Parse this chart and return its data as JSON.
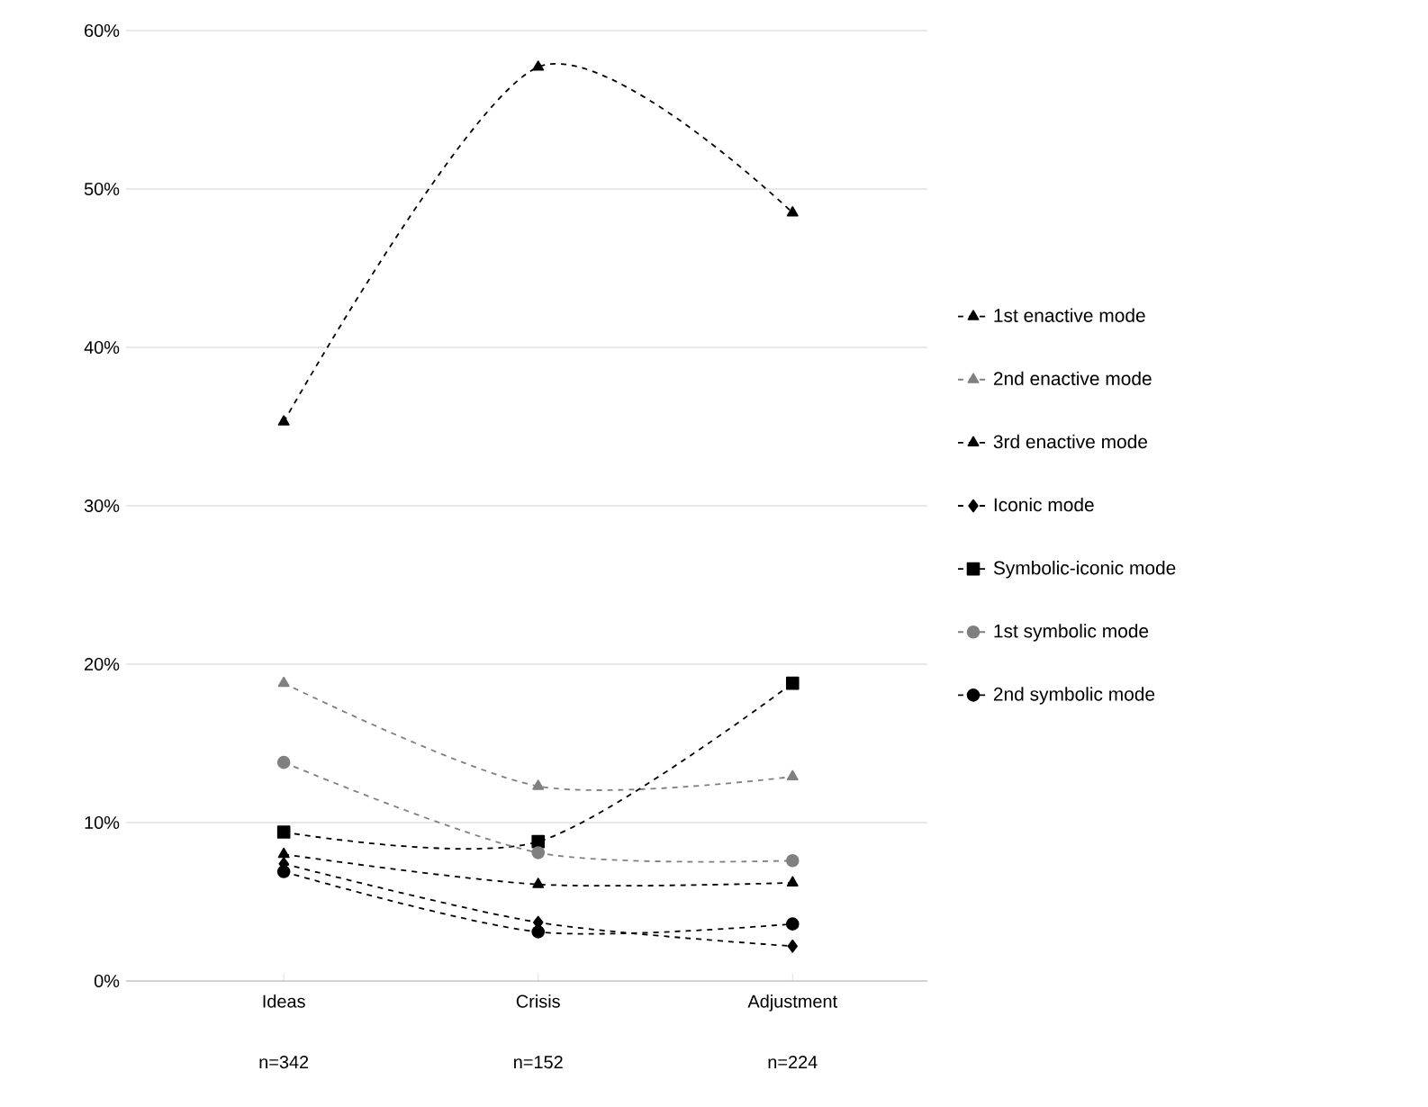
{
  "chart_data": {
    "type": "line",
    "categories": [
      "Ideas",
      "Crisis",
      "Adjustment"
    ],
    "annotations": [
      "n=342",
      "n=152",
      "n=224"
    ],
    "ylim": [
      0,
      60
    ],
    "yticks": [
      {
        "value": 0,
        "label": "0%"
      },
      {
        "value": 10,
        "label": "10%"
      },
      {
        "value": 20,
        "label": "20%"
      },
      {
        "value": 30,
        "label": "30%"
      },
      {
        "value": 40,
        "label": "40%"
      },
      {
        "value": 50,
        "label": "50%"
      },
      {
        "value": 60,
        "label": "60%"
      }
    ],
    "grid": "y",
    "legend": "right",
    "line_style": "dashed",
    "series": [
      {
        "name": "1st enactive mode",
        "color": "#000000",
        "marker": "triangle",
        "values": [
          8.0,
          6.1,
          6.2
        ]
      },
      {
        "name": "2nd enactive mode",
        "color": "#808080",
        "marker": "triangle",
        "values": [
          18.8,
          12.3,
          12.9
        ]
      },
      {
        "name": "3rd enactive mode",
        "color": "#000000",
        "marker": "triangle",
        "values": [
          35.3,
          57.7,
          48.5
        ]
      },
      {
        "name": "Iconic mode",
        "color": "#000000",
        "marker": "diamond",
        "values": [
          7.4,
          3.7,
          2.2
        ]
      },
      {
        "name": "Symbolic-iconic mode",
        "color": "#000000",
        "marker": "square",
        "values": [
          9.4,
          8.8,
          18.8
        ]
      },
      {
        "name": "1st symbolic mode",
        "color": "#808080",
        "marker": "circle",
        "values": [
          13.8,
          8.1,
          7.6
        ]
      },
      {
        "name": "2nd symbolic mode",
        "color": "#000000",
        "marker": "circle",
        "values": [
          6.9,
          3.1,
          3.6
        ]
      }
    ]
  }
}
